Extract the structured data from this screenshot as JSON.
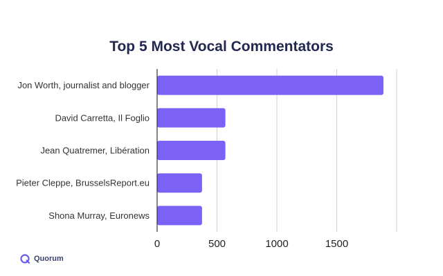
{
  "chart_data": {
    "type": "bar",
    "orientation": "horizontal",
    "title": "Top 5 Most Vocal Commentators",
    "categories": [
      "Jon Worth, journalist and blogger",
      "David Carretta, Il Foglio",
      "Jean Quatremer, Libération",
      "Pieter Cleppe, BrusselsReport.eu",
      "Shona Murray, Euronews"
    ],
    "values": [
      1890,
      570,
      570,
      375,
      375
    ],
    "xlim": [
      0,
      2000
    ],
    "xticks": [
      "0",
      "500",
      "1000",
      "1500"
    ],
    "xlabel": "",
    "ylabel": "",
    "grid": "vertical",
    "bar_color": "#7b61f5"
  },
  "brand": {
    "name": "Quorum",
    "logo_icon": "quorum-logo-icon",
    "color": "#6b5ce7"
  }
}
